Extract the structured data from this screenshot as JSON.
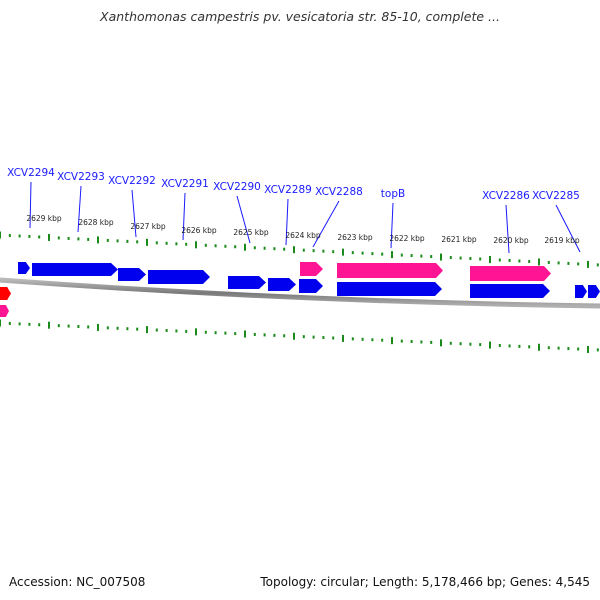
{
  "title": "Xanthomonas campestris pv. vesicatoria str. 85-10, complete ...",
  "footer": {
    "accession": "Accession: NC_007508",
    "summary": "Topology: circular; Length: 5,178,466 bp; Genes: 4,545"
  },
  "colors": {
    "forward_gene": "#0000ee",
    "reverse_gene": "#ff1493",
    "rna_gene": "#ff0000",
    "tick": "#1a8a1a",
    "backbone": "#888888",
    "label": "#1a1aff"
  },
  "gene_labels": [
    "XCV2294",
    "XCV2293",
    "XCV2292",
    "XCV2291",
    "XCV2290",
    "XCV2289",
    "XCV2288",
    "topB",
    "XCV2286",
    "XCV2285"
  ],
  "kbp_labels": [
    "2629 kbp",
    "2628 kbp",
    "2627 kbp",
    "2626 kbp",
    "2625 kbp",
    "2624 kbp",
    "2623 kbp",
    "2622 kbp",
    "2621 kbp",
    "2620 kbp",
    "2619 kbp"
  ]
}
